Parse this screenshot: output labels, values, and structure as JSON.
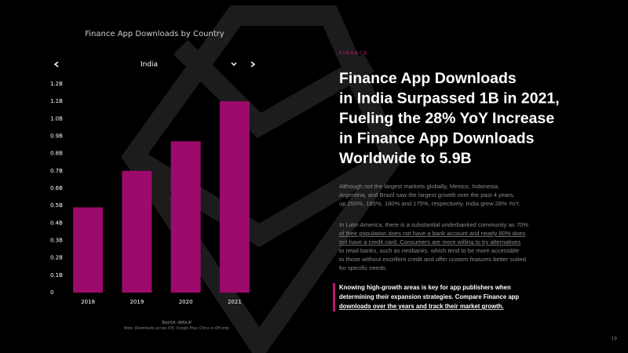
{
  "chart_data": {
    "type": "bar",
    "title": "Finance App Downloads by Country",
    "selected_country": "India",
    "categories": [
      "2018",
      "2019",
      "2020",
      "2021"
    ],
    "values": [
      0.49,
      0.7,
      0.87,
      1.1
    ],
    "color": "#9c0a6c",
    "ylim": [
      0,
      1.2
    ],
    "yticks": [
      0,
      {
        "value": 0.1,
        "label": "0.1B"
      },
      {
        "value": 0.2,
        "label": "0.2B"
      },
      {
        "value": 0.3,
        "label": "0.3B"
      },
      {
        "value": 0.4,
        "label": "0.4B"
      },
      {
        "value": 0.5,
        "label": "0.5B"
      },
      {
        "value": 0.6,
        "label": "0.6B"
      },
      {
        "value": 0.7,
        "label": "0.7B"
      },
      {
        "value": 0.8,
        "label": "0.8B"
      },
      {
        "value": 0.9,
        "label": "0.9B"
      },
      {
        "value": 1.0,
        "label": "1.0B"
      },
      {
        "value": 1.1,
        "label": "1.1B"
      },
      {
        "value": 1.2,
        "label": "1.2B"
      }
    ],
    "grid": false,
    "source": "Source: data.ai",
    "note": "Note: Downloads across iOS, Google Play; China is iOS only"
  },
  "article": {
    "kicker": "FINANCE",
    "headline": [
      "Finance App Downloads",
      "in India Surpassed 1B in 2021,",
      "Fueling the 28% YoY Increase",
      "in Finance App Downloads",
      "Worldwide to 5.9B"
    ],
    "paragraph_1": [
      "Although not the largest markets globally, Mexico, Indonesia,",
      "Argentina, and Brazil saw the largest growth over the past 4 years,",
      "up 250%, 185%, 180% and 175%, respectively. India grew 28% YoY."
    ],
    "paragraph_2": [
      "In Latin America, there is a substantial underbanked community as 70%",
      "of their population does not have a bank account and nearly 80% does",
      "not have a credit card. Consumers are more willing to try alternatives",
      "to retail banks, such as neobanks, which tend to be more accessible",
      "to those without excellent credit and offer custom features better suited",
      "for specific needs."
    ],
    "callout": [
      "Knowing high-growth areas is key for app publishers when",
      "determining their expansion strategies. Compare Finance app",
      "downloads over the years and track their market growth."
    ],
    "page_number": "19"
  }
}
